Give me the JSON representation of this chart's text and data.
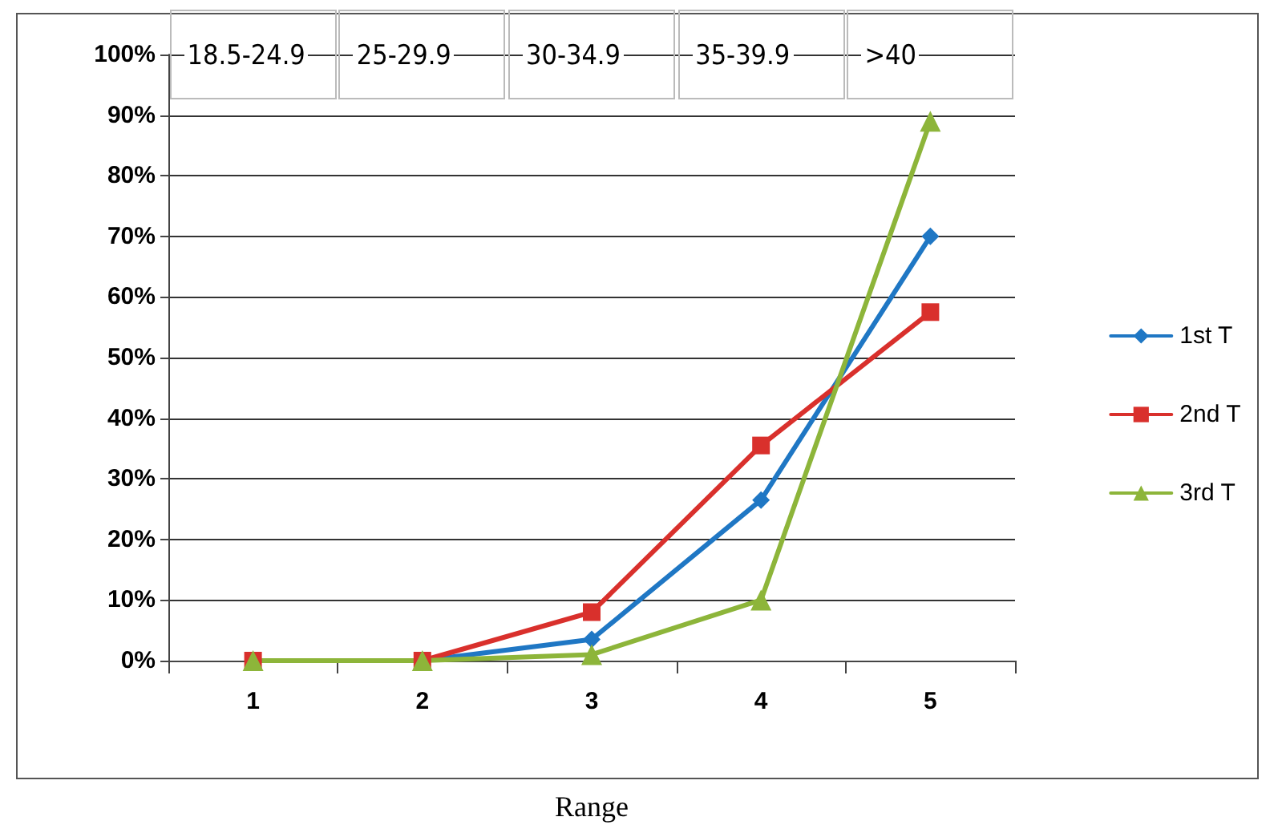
{
  "chart_data": {
    "type": "line",
    "xlabel": "Range",
    "categories": [
      "1",
      "2",
      "3",
      "4",
      "5"
    ],
    "annotations": [
      "18.5-24.9",
      "25-29.9",
      "30-34.9",
      "35-39.9",
      ">40"
    ],
    "series": [
      {
        "name": "1st T",
        "color": "#1f77c4",
        "marker": "diamond",
        "values": [
          0,
          0,
          3.5,
          26.5,
          70
        ]
      },
      {
        "name": "2nd T",
        "color": "#d9302c",
        "marker": "square",
        "values": [
          0,
          0,
          8,
          35.5,
          57.5
        ]
      },
      {
        "name": "3rd T",
        "color": "#8db53a",
        "marker": "triangle",
        "values": [
          0,
          0,
          1,
          10,
          89
        ]
      }
    ],
    "ylim": [
      0,
      100
    ],
    "yticks": [
      {
        "value": 0,
        "label": "0%"
      },
      {
        "value": 10,
        "label": "10%"
      },
      {
        "value": 20,
        "label": "20%"
      },
      {
        "value": 30,
        "label": "30%"
      },
      {
        "value": 40,
        "label": "40%"
      },
      {
        "value": 50,
        "label": "50%"
      },
      {
        "value": 60,
        "label": "60%"
      },
      {
        "value": 70,
        "label": "70%"
      },
      {
        "value": 80,
        "label": "80%"
      },
      {
        "value": 90,
        "label": "90%"
      },
      {
        "value": 100,
        "label": "100%"
      }
    ],
    "grid": "y",
    "legend": "right",
    "line_style": "solid"
  }
}
